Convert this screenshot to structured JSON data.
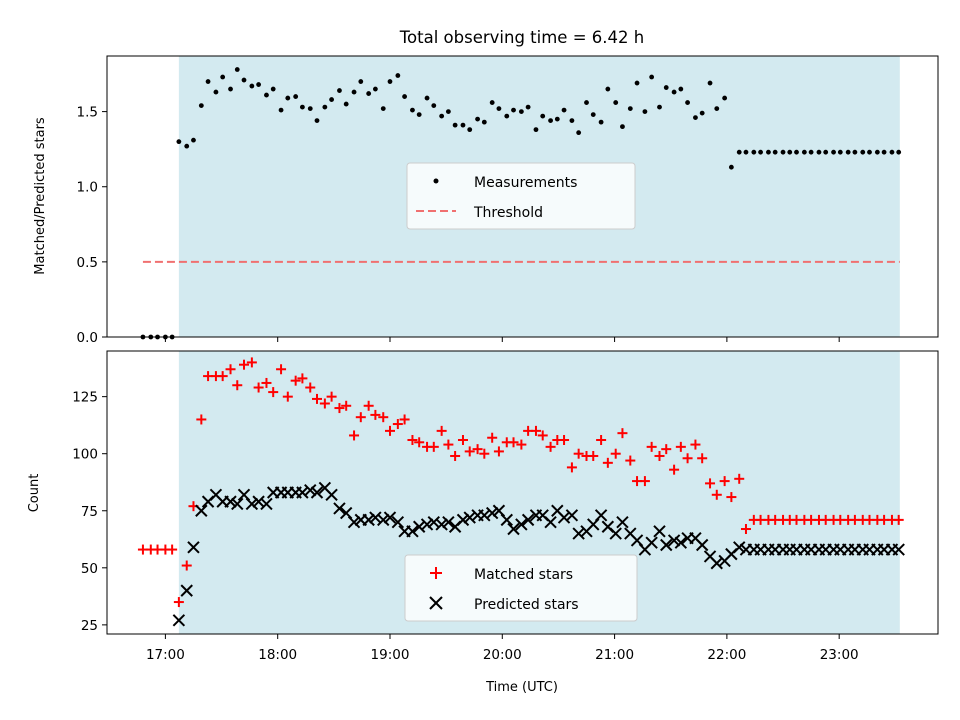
{
  "figure_title": "Total observing time = 6.42 h",
  "colors": {
    "shade": "#d3eaf0",
    "threshold": "#f07070",
    "matched": "#ff0000",
    "predicted": "#000000",
    "measurement": "#000000"
  },
  "chart_data": [
    {
      "type": "scatter",
      "title": "Total observing time = 6.42 h",
      "ylabel": "Matched/Predicted stars",
      "xlim": [
        16.48,
        23.88
      ],
      "ylim": [
        0.0,
        1.87
      ],
      "yticks": [
        0.0,
        0.5,
        1.0,
        1.5
      ],
      "ytick_labels": [
        "0.0",
        "0.5",
        "1.0",
        "1.5"
      ],
      "shaded_span": [
        17.12,
        23.54
      ],
      "legend_position": "center",
      "legend": [
        "Measurements",
        "Threshold"
      ],
      "threshold": {
        "name": "Threshold",
        "y": 0.5,
        "x_range": [
          16.8,
          23.54
        ]
      },
      "series": [
        {
          "name": "Measurements",
          "x": [
            16.8,
            16.87,
            16.93,
            17.0,
            17.06,
            17.12,
            17.19,
            17.25,
            17.32,
            17.38,
            17.45,
            17.51,
            17.58,
            17.64,
            17.7,
            17.77,
            17.83,
            17.9,
            17.96,
            18.03,
            18.09,
            18.16,
            18.22,
            18.29,
            18.35,
            18.42,
            18.48,
            18.55,
            18.61,
            18.68,
            18.74,
            18.81,
            18.87,
            18.94,
            19.0,
            19.07,
            19.13,
            19.2,
            19.26,
            19.33,
            19.39,
            19.46,
            19.52,
            19.58,
            19.65,
            19.71,
            19.78,
            19.84,
            19.91,
            19.97,
            20.04,
            20.1,
            20.17,
            20.23,
            20.3,
            20.36,
            20.43,
            20.49,
            20.55,
            20.62,
            20.68,
            20.75,
            20.81,
            20.88,
            20.94,
            21.01,
            21.07,
            21.14,
            21.2,
            21.27,
            21.33,
            21.4,
            21.46,
            21.53,
            21.59,
            21.65,
            21.72,
            21.78,
            21.85,
            21.91,
            21.98,
            22.04,
            22.11,
            22.17,
            22.24,
            22.3,
            22.37,
            22.43,
            22.5,
            22.56,
            22.62,
            22.69,
            22.75,
            22.82,
            22.88,
            22.95,
            23.01,
            23.08,
            23.14,
            23.21,
            23.27,
            23.34,
            23.4,
            23.47,
            23.53
          ],
          "y": [
            0.0,
            0.0,
            0.0,
            0.0,
            0.0,
            1.3,
            1.27,
            1.31,
            1.54,
            1.7,
            1.63,
            1.73,
            1.65,
            1.78,
            1.71,
            1.67,
            1.68,
            1.61,
            1.65,
            1.51,
            1.59,
            1.6,
            1.53,
            1.52,
            1.44,
            1.53,
            1.58,
            1.64,
            1.55,
            1.63,
            1.7,
            1.62,
            1.65,
            1.52,
            1.7,
            1.74,
            1.6,
            1.51,
            1.48,
            1.59,
            1.54,
            1.47,
            1.5,
            1.41,
            1.41,
            1.38,
            1.45,
            1.43,
            1.56,
            1.52,
            1.47,
            1.51,
            1.5,
            1.53,
            1.38,
            1.47,
            1.44,
            1.45,
            1.51,
            1.44,
            1.36,
            1.56,
            1.48,
            1.43,
            1.65,
            1.56,
            1.4,
            1.52,
            1.69,
            1.5,
            1.73,
            1.53,
            1.66,
            1.63,
            1.65,
            1.56,
            1.46,
            1.49,
            1.69,
            1.52,
            1.59,
            1.13,
            1.23,
            1.23,
            1.23,
            1.23,
            1.23,
            1.23,
            1.23,
            1.23,
            1.23,
            1.23,
            1.23,
            1.23,
            1.23,
            1.23,
            1.23,
            1.23,
            1.23,
            1.23,
            1.23,
            1.23,
            1.23,
            1.23,
            1.23
          ]
        }
      ]
    },
    {
      "type": "scatter",
      "xlabel": "Time (UTC)",
      "ylabel": "Count",
      "xlim": [
        16.48,
        23.88
      ],
      "ylim": [
        21,
        145
      ],
      "yticks": [
        25,
        50,
        75,
        100,
        125
      ],
      "ytick_labels": [
        "25",
        "50",
        "75",
        "100",
        "125"
      ],
      "xticks": [
        17,
        18,
        19,
        20,
        21,
        22,
        23
      ],
      "xtick_labels": [
        "17:00",
        "18:00",
        "19:00",
        "20:00",
        "21:00",
        "22:00",
        "23:00"
      ],
      "shaded_span": [
        17.12,
        23.54
      ],
      "legend_position": "lower center",
      "legend": [
        "Matched stars",
        "Predicted stars"
      ],
      "series": [
        {
          "name": "Matched stars",
          "marker": "+",
          "x": [
            16.8,
            16.87,
            16.93,
            17.0,
            17.06,
            17.12,
            17.19,
            17.25,
            17.32,
            17.38,
            17.45,
            17.51,
            17.58,
            17.64,
            17.7,
            17.77,
            17.83,
            17.9,
            17.96,
            18.03,
            18.09,
            18.16,
            18.22,
            18.29,
            18.35,
            18.42,
            18.48,
            18.55,
            18.61,
            18.68,
            18.74,
            18.81,
            18.87,
            18.94,
            19.0,
            19.07,
            19.13,
            19.2,
            19.26,
            19.33,
            19.39,
            19.46,
            19.52,
            19.58,
            19.65,
            19.71,
            19.78,
            19.84,
            19.91,
            19.97,
            20.04,
            20.1,
            20.17,
            20.23,
            20.3,
            20.36,
            20.43,
            20.49,
            20.55,
            20.62,
            20.68,
            20.75,
            20.81,
            20.88,
            20.94,
            21.01,
            21.07,
            21.14,
            21.2,
            21.27,
            21.33,
            21.4,
            21.46,
            21.53,
            21.59,
            21.65,
            21.72,
            21.78,
            21.85,
            21.91,
            21.98,
            22.04,
            22.11,
            22.17,
            22.24,
            22.3,
            22.37,
            22.43,
            22.5,
            22.56,
            22.62,
            22.69,
            22.75,
            22.82,
            22.88,
            22.95,
            23.01,
            23.08,
            23.14,
            23.21,
            23.27,
            23.34,
            23.4,
            23.47,
            23.53
          ],
          "y": [
            58,
            58,
            58,
            58,
            58,
            35,
            51,
            77,
            115,
            134,
            134,
            134,
            137,
            130,
            139,
            140,
            129,
            131,
            127,
            137,
            125,
            132,
            133,
            129,
            124,
            122,
            125,
            120,
            121,
            108,
            116,
            121,
            117,
            116,
            110,
            113,
            115,
            106,
            105,
            103,
            103,
            110,
            104,
            99,
            106,
            101,
            102,
            100,
            107,
            101,
            105,
            105,
            104,
            110,
            110,
            108,
            103,
            106,
            106,
            94,
            100,
            99,
            99,
            106,
            96,
            100,
            109,
            97,
            88,
            88,
            103,
            99,
            102,
            93,
            103,
            98,
            104,
            98,
            87,
            82,
            88,
            81,
            89,
            67,
            71,
            71,
            71,
            71,
            71,
            71,
            71,
            71,
            71,
            71,
            71,
            71,
            71,
            71,
            71,
            71,
            71,
            71,
            71,
            71,
            71
          ]
        },
        {
          "name": "Predicted stars",
          "marker": "x",
          "x": [
            17.12,
            17.19,
            17.25,
            17.32,
            17.38,
            17.45,
            17.51,
            17.58,
            17.64,
            17.7,
            17.77,
            17.83,
            17.9,
            17.96,
            18.03,
            18.09,
            18.16,
            18.22,
            18.29,
            18.35,
            18.42,
            18.48,
            18.55,
            18.61,
            18.68,
            18.74,
            18.81,
            18.87,
            18.94,
            19.0,
            19.07,
            19.13,
            19.2,
            19.26,
            19.33,
            19.39,
            19.46,
            19.52,
            19.58,
            19.65,
            19.71,
            19.78,
            19.84,
            19.91,
            19.97,
            20.04,
            20.1,
            20.17,
            20.23,
            20.3,
            20.36,
            20.43,
            20.49,
            20.55,
            20.62,
            20.68,
            20.75,
            20.81,
            20.88,
            20.94,
            21.01,
            21.07,
            21.14,
            21.2,
            21.27,
            21.33,
            21.4,
            21.46,
            21.53,
            21.59,
            21.65,
            21.72,
            21.78,
            21.85,
            21.91,
            21.98,
            22.04,
            22.11,
            22.17,
            22.24,
            22.3,
            22.37,
            22.43,
            22.5,
            22.56,
            22.62,
            22.69,
            22.75,
            22.82,
            22.88,
            22.95,
            23.01,
            23.08,
            23.14,
            23.21,
            23.27,
            23.34,
            23.4,
            23.47,
            23.53
          ],
          "y": [
            27,
            40,
            59,
            75,
            79,
            82,
            79,
            79,
            78,
            82,
            78,
            79,
            78,
            83,
            83,
            83,
            83,
            83,
            84,
            83,
            85,
            82,
            76,
            74,
            70,
            71,
            71,
            72,
            71,
            72,
            70,
            66,
            66,
            68,
            69,
            70,
            69,
            70,
            68,
            71,
            72,
            73,
            73,
            74,
            75,
            71,
            67,
            69,
            71,
            73,
            73,
            70,
            75,
            72,
            73,
            65,
            66,
            69,
            73,
            68,
            65,
            70,
            65,
            62,
            58,
            61,
            66,
            60,
            62,
            61,
            63,
            63,
            60,
            55,
            52,
            53,
            56,
            59,
            58,
            58,
            58,
            58,
            58,
            58,
            58,
            58,
            58,
            58,
            58,
            58,
            58,
            58,
            58,
            58,
            58,
            58,
            58,
            58,
            58,
            58
          ]
        }
      ]
    }
  ]
}
